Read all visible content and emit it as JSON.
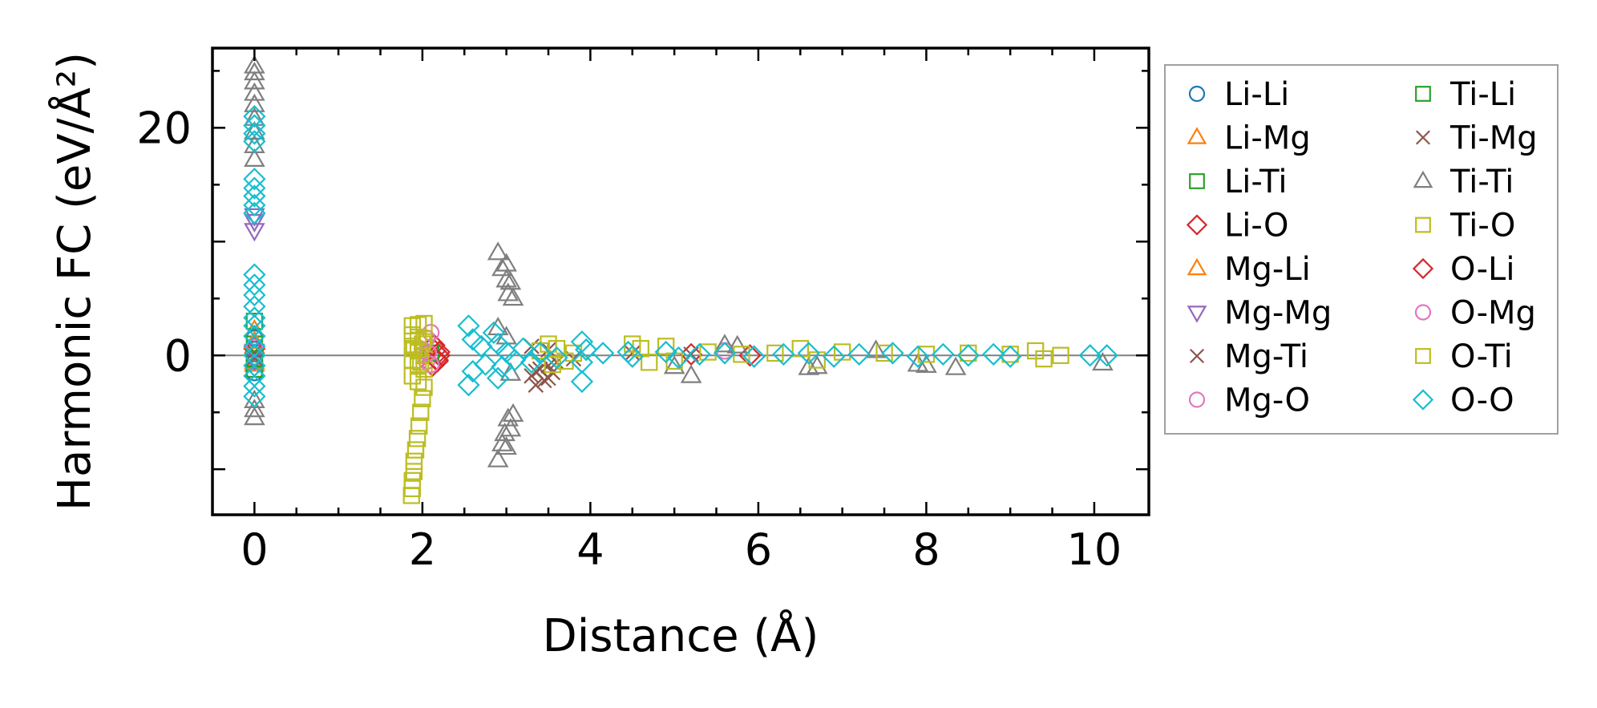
{
  "chart_data": {
    "type": "scatter",
    "xlabel": "Distance (Å)",
    "ylabel": "Harmonic FC (eV/Å²)",
    "xlim": [
      -0.5,
      10.65
    ],
    "ylim": [
      -14,
      27
    ],
    "x_ticks": [
      0,
      2,
      4,
      6,
      8,
      10
    ],
    "y_ticks": [
      0,
      20
    ],
    "x_tick_labels": [
      "0",
      "2",
      "4",
      "6",
      "8",
      "10"
    ],
    "y_tick_labels": [
      "0",
      "20"
    ],
    "reference_line_y": 0,
    "grid": false,
    "legend_position": "outside-right",
    "series": [
      {
        "name": "Li-Li",
        "marker": "circle",
        "color": "#1f77b4",
        "points": [
          [
            0,
            0.5
          ],
          [
            0,
            -0.5
          ],
          [
            0,
            1.5
          ],
          [
            0,
            -1.5
          ]
        ]
      },
      {
        "name": "Li-Mg",
        "marker": "triangle-up",
        "color": "#ff7f0e",
        "points": [
          [
            0,
            0.8
          ],
          [
            0,
            -0.8
          ],
          [
            0,
            2.2
          ]
        ]
      },
      {
        "name": "Li-Ti",
        "marker": "square",
        "color": "#2ca02c",
        "points": [
          [
            0,
            1.0
          ],
          [
            0,
            -1.2
          ],
          [
            0,
            3.0
          ]
        ]
      },
      {
        "name": "Li-O",
        "marker": "diamond",
        "color": "#d62728",
        "points": [
          [
            0,
            0.6
          ],
          [
            2.15,
            0.4
          ],
          [
            2.18,
            -0.4
          ],
          [
            2.2,
            0.0
          ],
          [
            2.12,
            -0.9
          ],
          [
            2.14,
            0.9
          ],
          [
            5.2,
            0.1
          ],
          [
            5.9,
            0.0
          ]
        ]
      },
      {
        "name": "Mg-Li",
        "marker": "triangle-up",
        "color": "#ff7f0e",
        "points": [
          [
            0,
            -0.6
          ],
          [
            0,
            1.2
          ]
        ]
      },
      {
        "name": "Mg-Mg",
        "marker": "triangle-down",
        "color": "#9467bd",
        "points": [
          [
            0,
            11.0
          ],
          [
            0,
            11.8
          ],
          [
            0,
            12.3
          ],
          [
            0,
            0.4
          ],
          [
            0,
            -0.4
          ]
        ]
      },
      {
        "name": "Mg-Ti",
        "marker": "x",
        "color": "#8c564b",
        "points": [
          [
            0,
            0.3
          ],
          [
            3.3,
            -1.8
          ],
          [
            3.35,
            -2.6
          ],
          [
            3.4,
            -1.2
          ],
          [
            3.45,
            -2.2
          ],
          [
            3.5,
            -0.9
          ],
          [
            3.55,
            -1.5
          ],
          [
            3.6,
            -0.6
          ],
          [
            3.3,
            0.8
          ],
          [
            3.5,
            0.5
          ],
          [
            3.8,
            -0.3
          ],
          [
            4.5,
            0.2
          ],
          [
            5.2,
            0.1
          ]
        ]
      },
      {
        "name": "Mg-O",
        "marker": "circle",
        "color": "#e377c2",
        "points": [
          [
            0,
            0.7
          ],
          [
            2.0,
            0.5
          ],
          [
            2.05,
            -0.5
          ],
          [
            2.1,
            2.0
          ],
          [
            2.05,
            1.5
          ],
          [
            5.6,
            0.4
          ]
        ]
      },
      {
        "name": "Ti-Li",
        "marker": "square",
        "color": "#2ca02c",
        "points": [
          [
            0,
            -0.3
          ],
          [
            2.1,
            0.2
          ]
        ]
      },
      {
        "name": "Ti-Mg",
        "marker": "x",
        "color": "#8c564b",
        "points": [
          [
            0,
            -0.2
          ],
          [
            3.35,
            -1.4
          ],
          [
            3.5,
            -2.0
          ]
        ]
      },
      {
        "name": "Ti-Ti",
        "marker": "triangle-up",
        "color": "#7f7f7f",
        "points": [
          [
            0,
            -5.5
          ],
          [
            0,
            -4.8
          ],
          [
            0,
            -4.0
          ],
          [
            0,
            17.2
          ],
          [
            0,
            18.4
          ],
          [
            0,
            19.6
          ],
          [
            0,
            20.8
          ],
          [
            0,
            22.0
          ],
          [
            0,
            23.0
          ],
          [
            0,
            24.0
          ],
          [
            0,
            24.8
          ],
          [
            0,
            25.4
          ],
          [
            2.9,
            9.0
          ],
          [
            2.95,
            7.6
          ],
          [
            3.0,
            8.0
          ],
          [
            3.05,
            6.4
          ],
          [
            3.02,
            5.4
          ],
          [
            3.08,
            5.0
          ],
          [
            3.0,
            6.6
          ],
          [
            2.9,
            -9.2
          ],
          [
            2.95,
            -7.8
          ],
          [
            3.0,
            -8.1
          ],
          [
            3.05,
            -6.5
          ],
          [
            3.02,
            -5.6
          ],
          [
            3.08,
            -5.2
          ],
          [
            2.98,
            -6.9
          ],
          [
            2.9,
            2.4
          ],
          [
            3.0,
            1.6
          ],
          [
            3.05,
            -1.6
          ],
          [
            5.0,
            -1.0
          ],
          [
            5.2,
            -1.8
          ],
          [
            5.6,
            0.9
          ],
          [
            5.75,
            0.8
          ],
          [
            6.6,
            -1.1
          ],
          [
            6.7,
            -1.0
          ],
          [
            7.4,
            0.4
          ],
          [
            7.9,
            -0.8
          ],
          [
            8.0,
            -0.9
          ],
          [
            8.35,
            -1.1
          ],
          [
            10.1,
            -0.7
          ]
        ]
      },
      {
        "name": "Ti-O",
        "marker": "square",
        "color": "#bcbd22",
        "points": [
          [
            1.88,
            2.6
          ],
          [
            1.95,
            2.7
          ],
          [
            2.02,
            2.8
          ],
          [
            1.88,
            1.8
          ],
          [
            1.95,
            1.6
          ],
          [
            2.02,
            1.2
          ],
          [
            1.88,
            0.8
          ],
          [
            1.95,
            0.4
          ],
          [
            2.02,
            0.0
          ],
          [
            1.88,
            -0.4
          ],
          [
            1.95,
            -0.8
          ],
          [
            2.02,
            -1.2
          ],
          [
            1.88,
            -1.8
          ],
          [
            1.95,
            -2.3
          ],
          [
            2.02,
            -2.8
          ],
          [
            2.0,
            -3.8
          ],
          [
            1.98,
            -5.0
          ],
          [
            1.96,
            -6.2
          ],
          [
            1.94,
            -7.3
          ],
          [
            1.92,
            -8.3
          ],
          [
            1.9,
            -9.3
          ],
          [
            1.9,
            -10.2
          ],
          [
            1.88,
            -11.0
          ],
          [
            1.88,
            -11.7
          ],
          [
            1.87,
            -12.3
          ],
          [
            3.5,
            1.0
          ],
          [
            3.6,
            0.6
          ],
          [
            3.7,
            -0.5
          ],
          [
            3.55,
            -0.8
          ],
          [
            3.4,
            0.4
          ],
          [
            3.8,
            0.2
          ],
          [
            4.5,
            1.0
          ],
          [
            4.6,
            0.6
          ],
          [
            4.7,
            -0.6
          ],
          [
            4.9,
            0.8
          ],
          [
            5.0,
            -0.5
          ],
          [
            5.4,
            0.3
          ],
          [
            5.8,
            0.1
          ],
          [
            6.2,
            0.2
          ],
          [
            6.5,
            0.6
          ],
          [
            6.7,
            -0.4
          ],
          [
            7.0,
            0.3
          ],
          [
            7.5,
            0.2
          ],
          [
            8.0,
            0.1
          ],
          [
            8.5,
            0.2
          ],
          [
            9.0,
            0.1
          ],
          [
            9.3,
            0.4
          ],
          [
            9.4,
            -0.3
          ],
          [
            9.6,
            0.0
          ]
        ]
      },
      {
        "name": "O-Li",
        "marker": "diamond",
        "color": "#d62728",
        "points": [
          [
            2.2,
            0.3
          ],
          [
            2.18,
            -0.5
          ]
        ]
      },
      {
        "name": "O-Mg",
        "marker": "circle",
        "color": "#e377c2",
        "points": [
          [
            2.07,
            0.2
          ],
          [
            2.1,
            -0.8
          ]
        ]
      },
      {
        "name": "O-Ti",
        "marker": "square",
        "color": "#bcbd22",
        "points": [
          [
            1.9,
            0.6
          ],
          [
            1.98,
            -0.6
          ],
          [
            2.0,
            1.0
          ]
        ]
      },
      {
        "name": "O-O",
        "marker": "diamond",
        "color": "#17becf",
        "points": [
          [
            0,
            21.0
          ],
          [
            0,
            20.2
          ],
          [
            0,
            19.5
          ],
          [
            0,
            18.8
          ],
          [
            0,
            15.5
          ],
          [
            0,
            14.7
          ],
          [
            0,
            14.0
          ],
          [
            0,
            13.2
          ],
          [
            0,
            12.5
          ],
          [
            0,
            7.1
          ],
          [
            0,
            6.2
          ],
          [
            0,
            5.3
          ],
          [
            0,
            4.3
          ],
          [
            0,
            3.3
          ],
          [
            0,
            2.6
          ],
          [
            0,
            1.7
          ],
          [
            0,
            0.8
          ],
          [
            0,
            0.0
          ],
          [
            0,
            -0.9
          ],
          [
            0,
            -1.8
          ],
          [
            0,
            -2.7
          ],
          [
            0,
            -3.6
          ],
          [
            2.55,
            2.6
          ],
          [
            2.6,
            1.4
          ],
          [
            2.6,
            -1.4
          ],
          [
            2.55,
            -2.6
          ],
          [
            2.7,
            0.8
          ],
          [
            2.75,
            -0.8
          ],
          [
            2.85,
            2.0
          ],
          [
            2.9,
            1.0
          ],
          [
            2.95,
            -1.0
          ],
          [
            2.9,
            -2.0
          ],
          [
            3.0,
            0.3
          ],
          [
            3.1,
            -0.4
          ],
          [
            3.2,
            0.6
          ],
          [
            3.3,
            -0.6
          ],
          [
            3.4,
            0.2
          ],
          [
            3.6,
            -0.2
          ],
          [
            3.9,
            1.2
          ],
          [
            3.95,
            0.5
          ],
          [
            3.9,
            -0.6
          ],
          [
            3.9,
            -2.3
          ],
          [
            4.15,
            0.2
          ],
          [
            4.45,
            0.3
          ],
          [
            4.5,
            -0.1
          ],
          [
            4.9,
            0.3
          ],
          [
            5.05,
            -0.2
          ],
          [
            5.3,
            0.1
          ],
          [
            5.6,
            0.2
          ],
          [
            5.95,
            -0.1
          ],
          [
            6.3,
            0.1
          ],
          [
            6.6,
            0.2
          ],
          [
            6.9,
            -0.1
          ],
          [
            7.2,
            0.1
          ],
          [
            7.6,
            0.2
          ],
          [
            7.9,
            -0.1
          ],
          [
            8.2,
            0.1
          ],
          [
            8.5,
            0.0
          ],
          [
            8.8,
            0.1
          ],
          [
            9.0,
            -0.1
          ],
          [
            9.95,
            0.0
          ],
          [
            10.15,
            0.0
          ]
        ]
      }
    ]
  }
}
